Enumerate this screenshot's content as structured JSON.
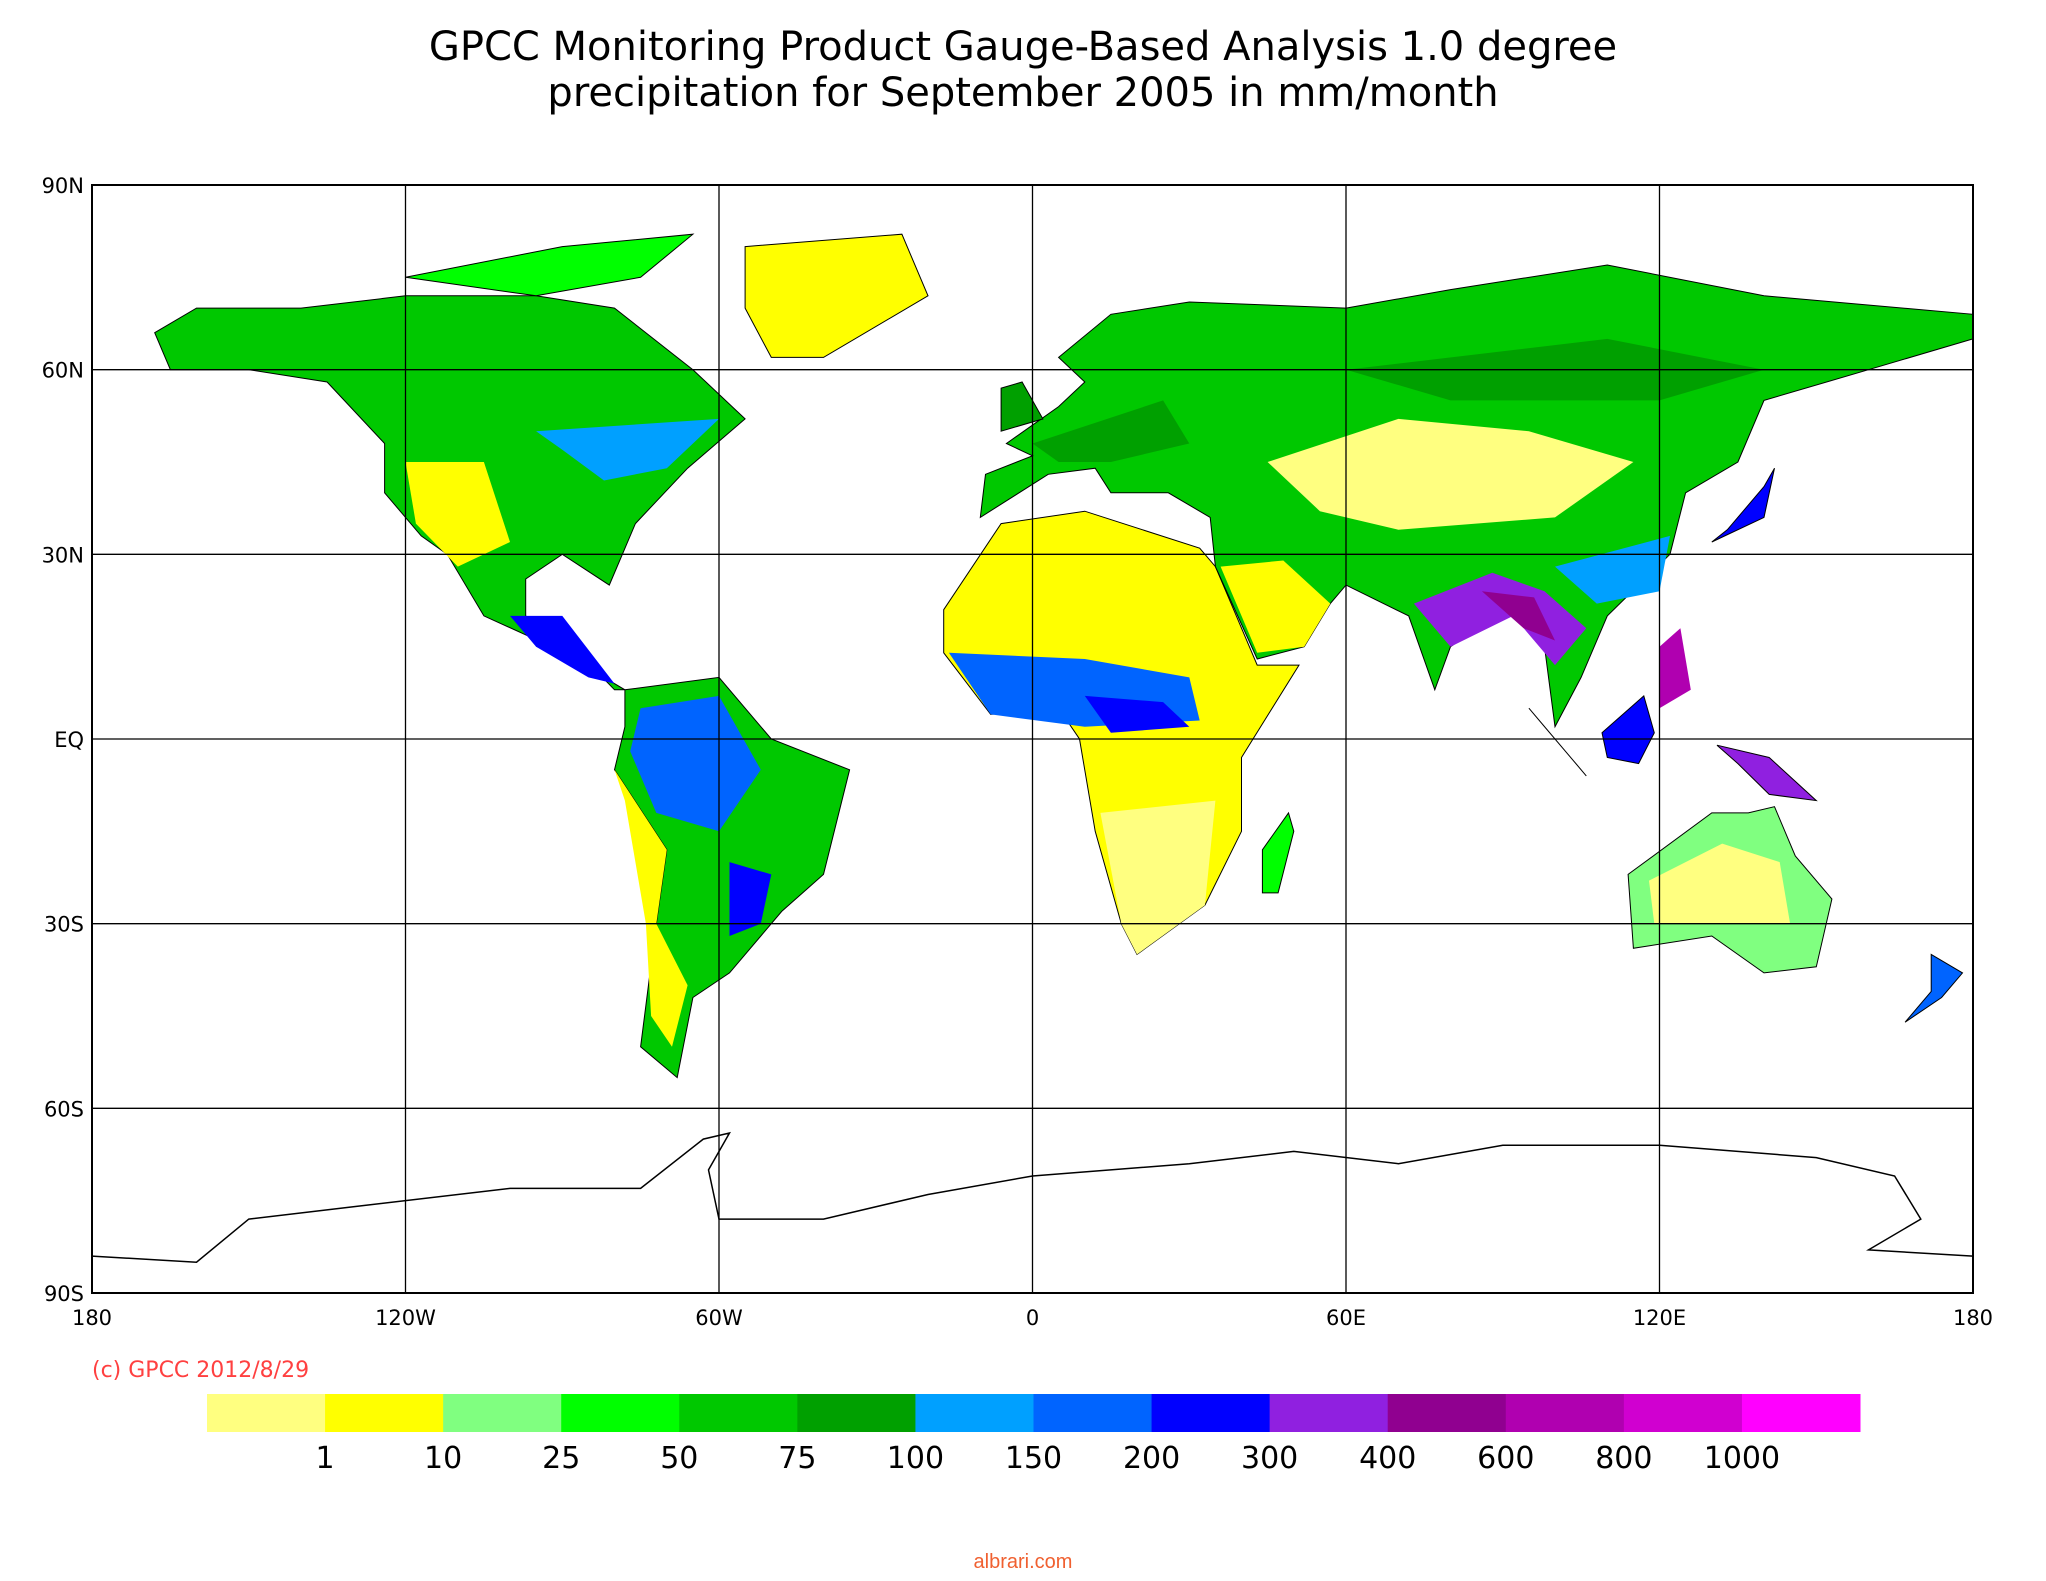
{
  "title": [
    "GPCC Monitoring Product Gauge-Based Analysis 1.0 degree",
    "precipitation for September  2005 in mm/month"
  ],
  "map": {
    "lat_labels": [
      "90N",
      "60N",
      "30N",
      "EQ",
      "30S",
      "60S",
      "90S"
    ],
    "lon_labels": [
      "180",
      "120W",
      "60W",
      "0",
      "60E",
      "120E",
      "180"
    ]
  },
  "colorbar": {
    "colors": [
      "#ffff80",
      "#ffff00",
      "#80ff80",
      "#00ff00",
      "#00c800",
      "#00a000",
      "#00a0ff",
      "#0064ff",
      "#0000ff",
      "#9020e0",
      "#900090",
      "#b000b0",
      "#d000d0",
      "#ff00ff"
    ],
    "labels": [
      1,
      10,
      25,
      50,
      75,
      100,
      150,
      200,
      300,
      400,
      600,
      800,
      1000
    ]
  },
  "credit": "(c) GPCC 2012/8/29",
  "watermark": "albrari.com"
}
